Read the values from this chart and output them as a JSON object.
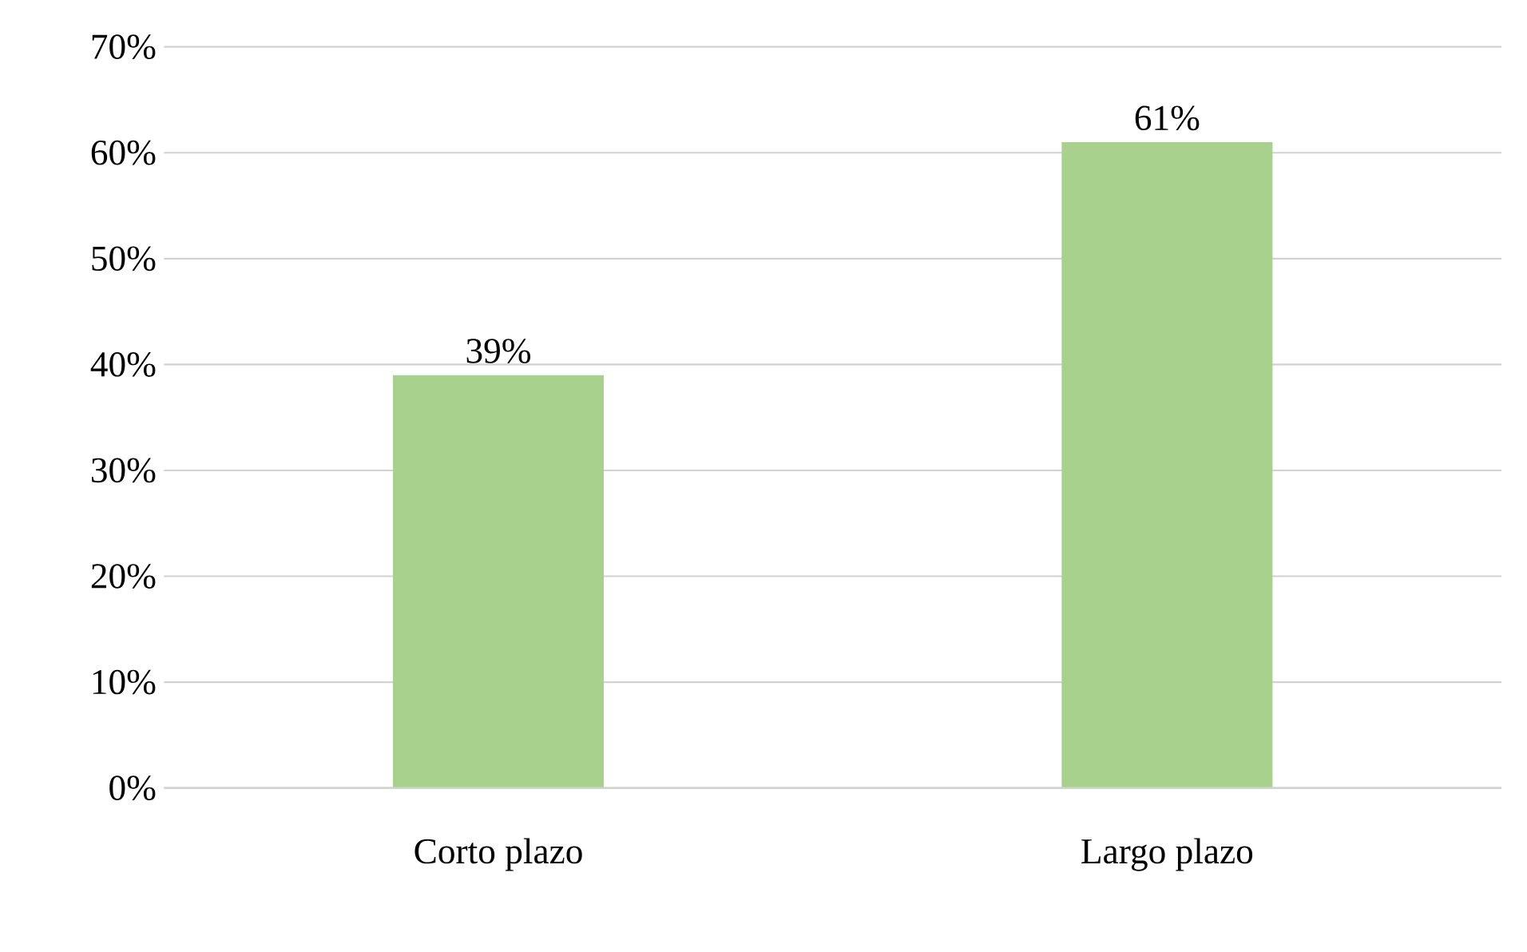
{
  "chart_data": {
    "type": "bar",
    "categories": [
      "Corto plazo",
      "Largo plazo"
    ],
    "values": [
      39,
      61
    ],
    "color": "#a9d18e",
    "ylim": [
      0,
      70
    ],
    "yticks": [
      {
        "value": 0,
        "label": "0%"
      },
      {
        "value": 10,
        "label": "10%"
      },
      {
        "value": 20,
        "label": "20%"
      },
      {
        "value": 30,
        "label": "30%"
      },
      {
        "value": 40,
        "label": "40%"
      },
      {
        "value": 50,
        "label": "50%"
      },
      {
        "value": 60,
        "label": "60%"
      },
      {
        "value": 70,
        "label": "70%"
      }
    ],
    "value_labels": [
      "39%",
      "61%"
    ],
    "grid": "y"
  }
}
